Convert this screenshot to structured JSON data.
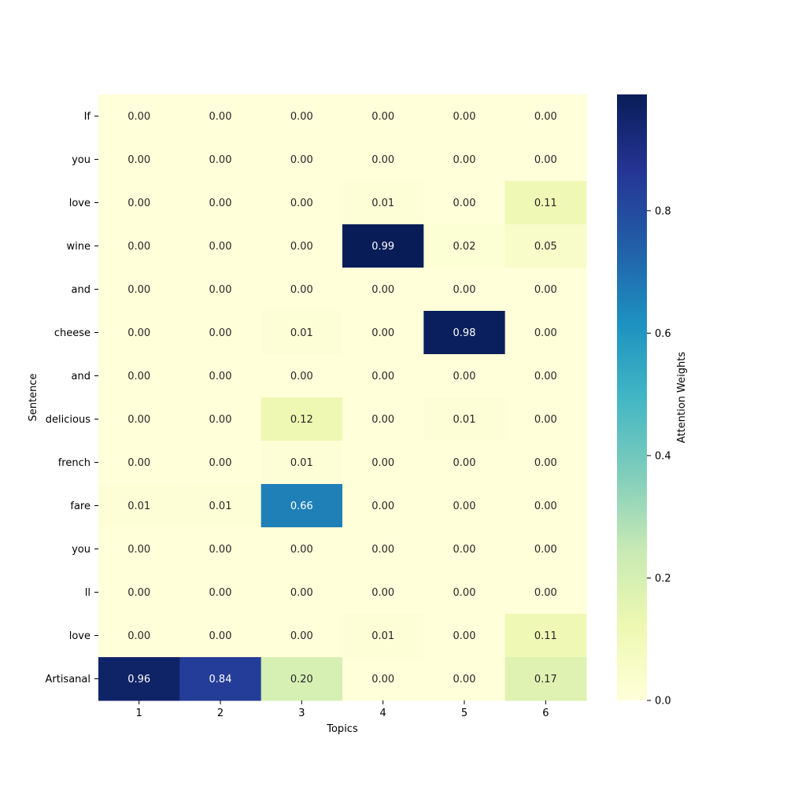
{
  "chart_data": {
    "type": "heatmap",
    "xlabel": "Topics",
    "ylabel": "Sentence",
    "x_categories": [
      "1",
      "2",
      "3",
      "4",
      "5",
      "6"
    ],
    "y_categories": [
      "If",
      "you",
      "love",
      "wine",
      "and",
      "cheese",
      "and",
      "delicious",
      "french",
      "fare",
      "you",
      "ll",
      "love",
      "Artisanal"
    ],
    "values": [
      [
        0.0,
        0.0,
        0.0,
        0.0,
        0.0,
        0.0
      ],
      [
        0.0,
        0.0,
        0.0,
        0.0,
        0.0,
        0.0
      ],
      [
        0.0,
        0.0,
        0.0,
        0.01,
        0.0,
        0.11
      ],
      [
        0.0,
        0.0,
        0.0,
        0.99,
        0.02,
        0.05
      ],
      [
        0.0,
        0.0,
        0.0,
        0.0,
        0.0,
        0.0
      ],
      [
        0.0,
        0.0,
        0.01,
        0.0,
        0.98,
        0.0
      ],
      [
        0.0,
        0.0,
        0.0,
        0.0,
        0.0,
        0.0
      ],
      [
        0.0,
        0.0,
        0.12,
        0.0,
        0.01,
        0.0
      ],
      [
        0.0,
        0.0,
        0.01,
        0.0,
        0.0,
        0.0
      ],
      [
        0.01,
        0.01,
        0.66,
        0.0,
        0.0,
        0.0
      ],
      [
        0.0,
        0.0,
        0.0,
        0.0,
        0.0,
        0.0
      ],
      [
        0.0,
        0.0,
        0.0,
        0.0,
        0.0,
        0.0
      ],
      [
        0.0,
        0.0,
        0.0,
        0.01,
        0.0,
        0.11
      ],
      [
        0.96,
        0.84,
        0.2,
        0.0,
        0.0,
        0.17
      ]
    ],
    "colormap": "YlGnBu",
    "colormap_stops": [
      "#ffffd9",
      "#edf8b1",
      "#c7e9b4",
      "#7fcdbb",
      "#41b6c4",
      "#1d91c0",
      "#225ea8",
      "#253494",
      "#081d58"
    ],
    "vmin": 0.0,
    "vmax": 0.99,
    "colorbar": {
      "label": "Attention Weights",
      "ticks": [
        0.0,
        0.2,
        0.4,
        0.6,
        0.8
      ],
      "tick_labels": [
        "0.0",
        "0.2",
        "0.4",
        "0.6",
        "0.8"
      ]
    },
    "value_format_decimals": 2
  }
}
